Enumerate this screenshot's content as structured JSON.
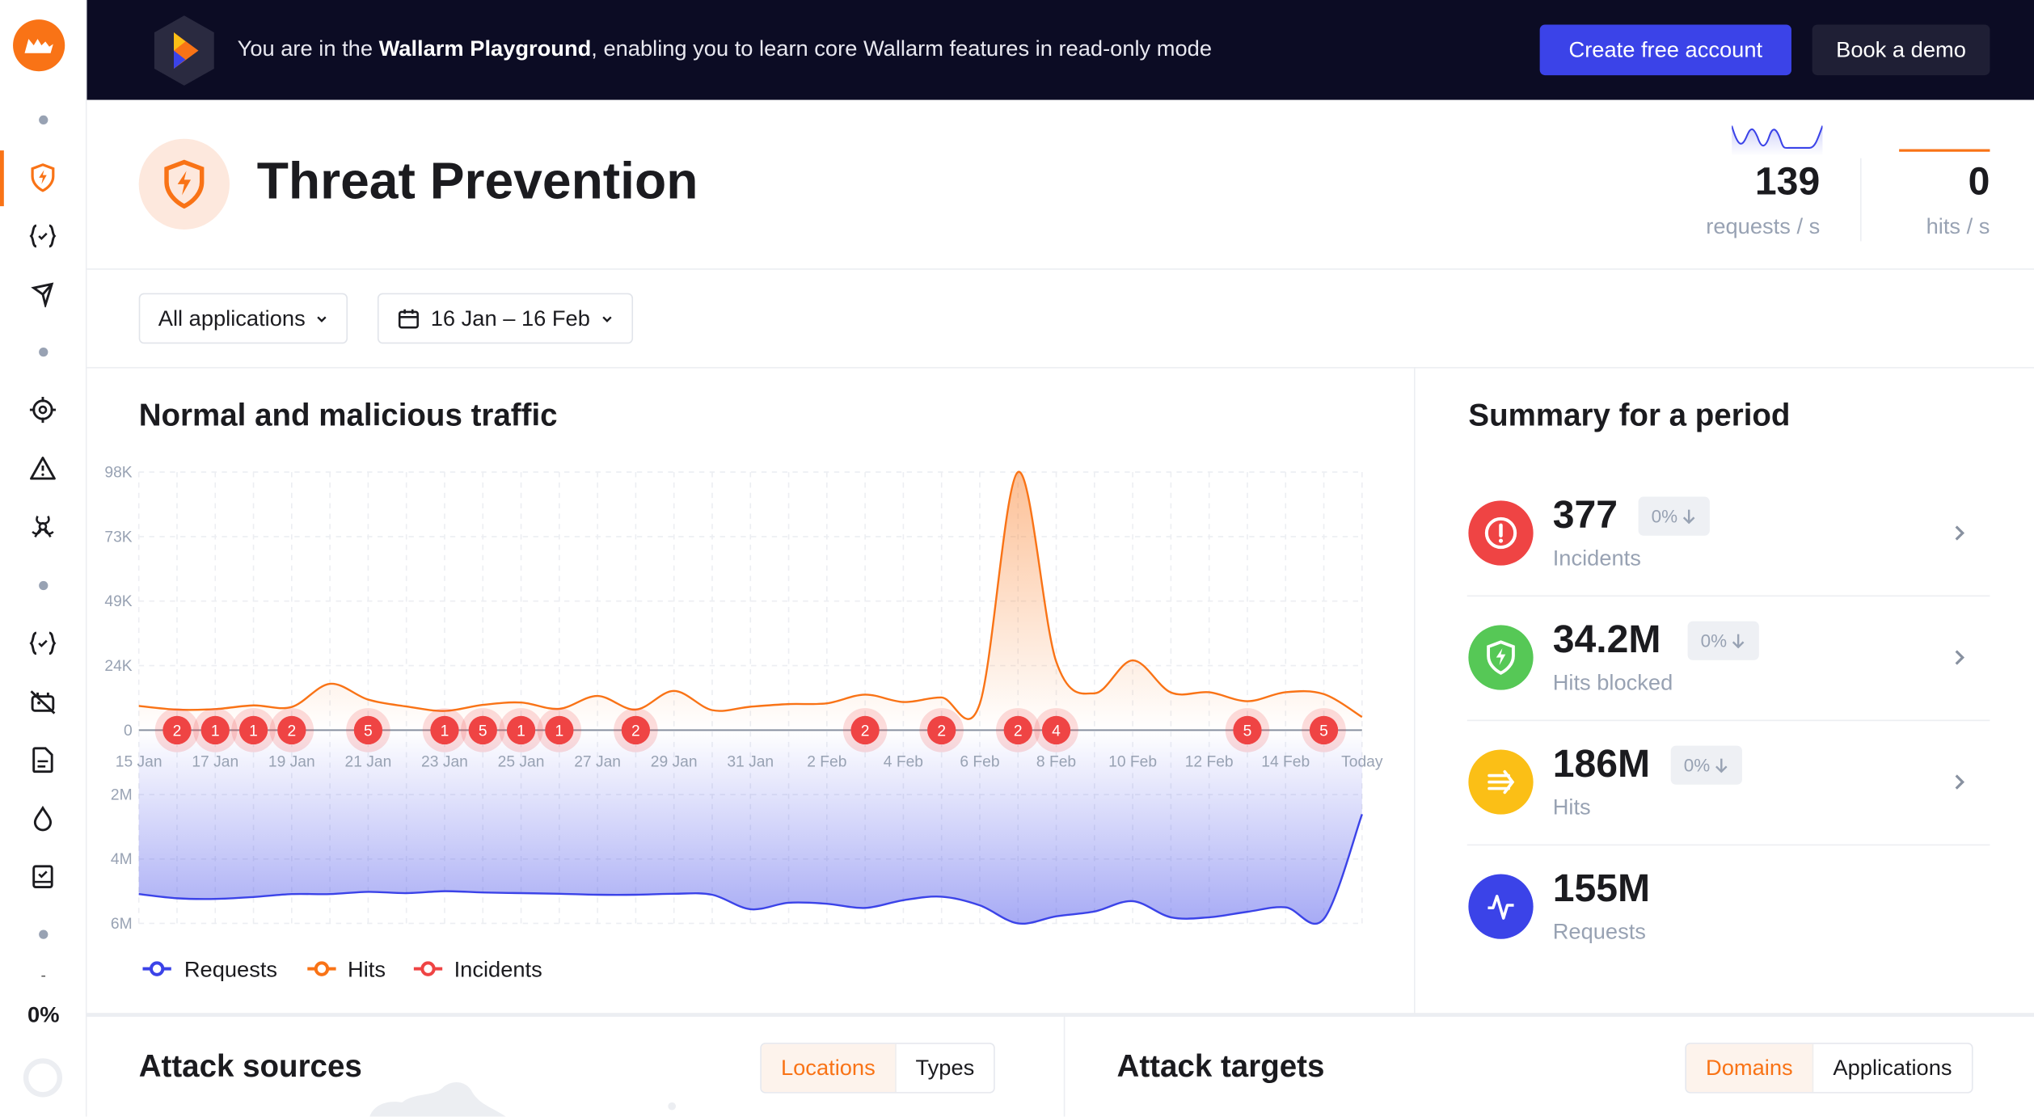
{
  "banner": {
    "text_prefix": "You are in the ",
    "text_bold": "Wallarm Playground",
    "text_suffix": ", enabling you to learn core Wallarm features in read-only mode",
    "create_account": "Create free account",
    "book_demo": "Book a demo"
  },
  "sidebar": {
    "items": [
      "threat-prevention",
      "api-discovery",
      "api-attack-surface",
      "vulnerabilities",
      "incidents",
      "threats",
      "api-specs",
      "rules-disabled",
      "reports",
      "triggers",
      "checklist"
    ],
    "progress_dash": "-",
    "progress_label": "0%",
    "progress_value": 0
  },
  "header": {
    "title": "Threat Prevention",
    "requests_value": "139",
    "requests_label": "requests / s",
    "hits_value": "0",
    "hits_label": "hits / s"
  },
  "filters": {
    "applications": "All applications",
    "date_range": "16 Jan – 16 Feb"
  },
  "traffic": {
    "title": "Normal and malicious traffic",
    "legend": [
      "Requests",
      "Hits",
      "Incidents"
    ]
  },
  "summary": {
    "title": "Summary for a period",
    "items": [
      {
        "value": "377",
        "label": "Incidents",
        "change": "0%",
        "color": "#ef4444",
        "icon": "alert-circle-icon"
      },
      {
        "value": "34.2M",
        "label": "Hits blocked",
        "change": "0%",
        "color": "#56c856",
        "icon": "shield-bolt-icon"
      },
      {
        "value": "186M",
        "label": "Hits",
        "change": "0%",
        "color": "#fbbf16",
        "icon": "arrows-right-icon"
      },
      {
        "value": "155M",
        "label": "Requests",
        "color": "#3b43e8",
        "icon": "pulse-icon"
      }
    ]
  },
  "attack_sources": {
    "title": "Attack sources",
    "tabs": [
      "Locations",
      "Types"
    ],
    "active_tab": "Locations"
  },
  "attack_targets": {
    "title": "Attack targets",
    "tabs": [
      "Domains",
      "Applications"
    ],
    "active_tab": "Domains"
  },
  "colors": {
    "accent": "#f97316",
    "requests": "#3b43e8",
    "hits": "#f97316",
    "incidents": "#ef4444",
    "banner_bg": "#0c0c24"
  },
  "chart_data": {
    "type": "area",
    "x": [
      "15 Jan",
      "16 Jan",
      "17 Jan",
      "18 Jan",
      "19 Jan",
      "20 Jan",
      "21 Jan",
      "22 Jan",
      "23 Jan",
      "24 Jan",
      "25 Jan",
      "26 Jan",
      "27 Jan",
      "28 Jan",
      "29 Jan",
      "30 Jan",
      "31 Jan",
      "1 Feb",
      "2 Feb",
      "3 Feb",
      "4 Feb",
      "5 Feb",
      "6 Feb",
      "7 Feb",
      "8 Feb",
      "9 Feb",
      "10 Feb",
      "11 Feb",
      "12 Feb",
      "13 Feb",
      "14 Feb",
      "15 Feb",
      "Today"
    ],
    "x_tick_labels": [
      "15 Jan",
      "17 Jan",
      "19 Jan",
      "21 Jan",
      "23 Jan",
      "25 Jan",
      "27 Jan",
      "29 Jan",
      "31 Jan",
      "2 Feb",
      "4 Feb",
      "6 Feb",
      "8 Feb",
      "10 Feb",
      "12 Feb",
      "14 Feb",
      "Today"
    ],
    "hits_axis": {
      "ticks": [
        "0",
        "24K",
        "49K",
        "73K",
        "98K"
      ],
      "tick_values": [
        0,
        24500,
        49000,
        73500,
        98000
      ],
      "range": [
        0,
        98000
      ]
    },
    "requests_axis": {
      "ticks": [
        "2M",
        "4M",
        "6M"
      ],
      "tick_values": [
        2000000,
        4000000,
        6000000
      ],
      "range": [
        0,
        6000000
      ],
      "inverted": true
    },
    "grid": true,
    "legend_position": "bottom-left",
    "series": [
      {
        "name": "Hits",
        "color": "#f97316",
        "values": [
          9200,
          7800,
          8000,
          9400,
          8800,
          17600,
          11600,
          9000,
          7300,
          9600,
          10500,
          8100,
          13000,
          7800,
          14900,
          7600,
          8900,
          9900,
          10200,
          13500,
          10700,
          12400,
          10000,
          98000,
          26000,
          14000,
          26500,
          14300,
          14400,
          11000,
          14400,
          13700,
          5000
        ]
      },
      {
        "name": "Requests",
        "color": "#3b43e8",
        "values": [
          5090000,
          5220000,
          5240000,
          5180000,
          5090000,
          5090000,
          5020000,
          5060000,
          5000000,
          5040000,
          5060000,
          5080000,
          5110000,
          5110000,
          5080000,
          5110000,
          5560000,
          5360000,
          5390000,
          5520000,
          5280000,
          5170000,
          5440000,
          6000000,
          5780000,
          5630000,
          5310000,
          5810000,
          5810000,
          5640000,
          5500000,
          5860000,
          2610000
        ]
      }
    ],
    "incidents": [
      {
        "x": "16 Jan",
        "count": 2
      },
      {
        "x": "17 Jan",
        "count": 1
      },
      {
        "x": "18 Jan",
        "count": 1
      },
      {
        "x": "19 Jan",
        "count": 2
      },
      {
        "x": "21 Jan",
        "count": 5
      },
      {
        "x": "23 Jan",
        "count": 1
      },
      {
        "x": "24 Jan",
        "count": 5
      },
      {
        "x": "25 Jan",
        "count": 1
      },
      {
        "x": "26 Jan",
        "count": 1
      },
      {
        "x": "28 Jan",
        "count": 2
      },
      {
        "x": "3 Feb",
        "count": 2
      },
      {
        "x": "5 Feb",
        "count": 2
      },
      {
        "x": "7 Feb",
        "count": 2
      },
      {
        "x": "8 Feb",
        "count": 4
      },
      {
        "x": "13 Feb",
        "count": 5
      },
      {
        "x": "15 Feb",
        "count": 5
      }
    ]
  }
}
